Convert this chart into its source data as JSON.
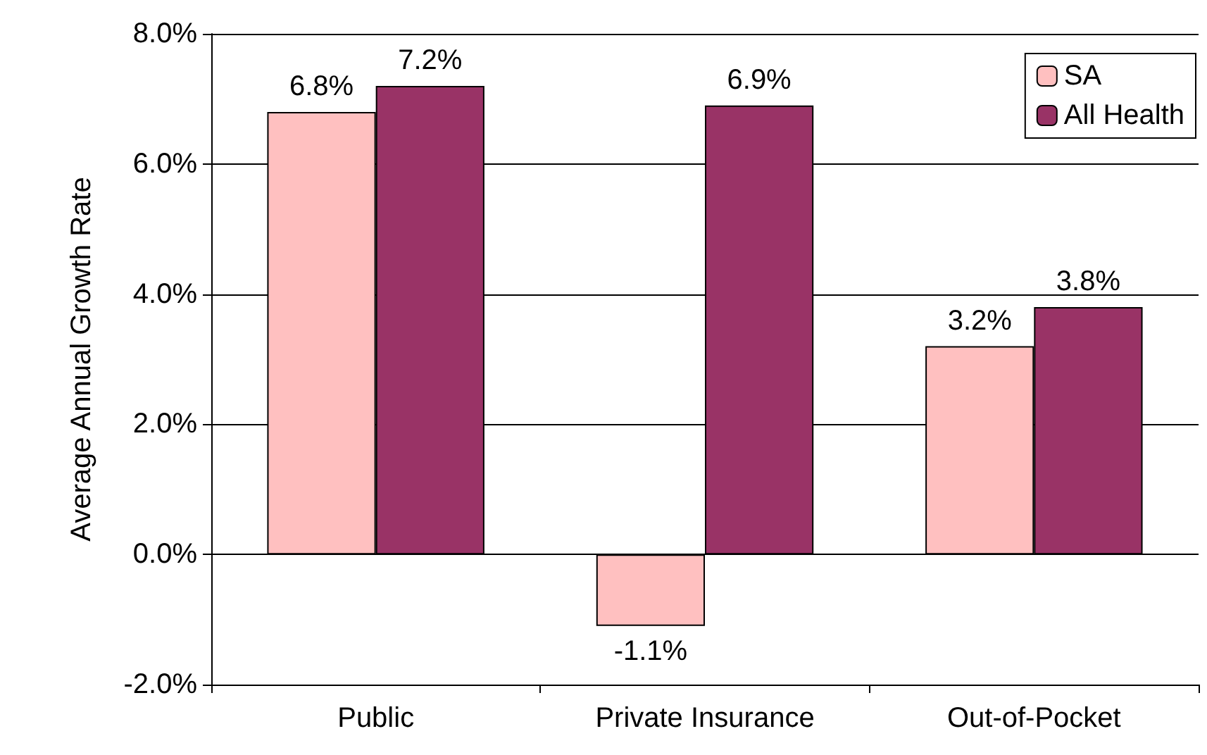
{
  "chart_data": {
    "type": "bar",
    "ylabel": "Average Annual Growth Rate",
    "categories": [
      "Public",
      "Private Insurance",
      "Out-of-Pocket"
    ],
    "series": [
      {
        "name": "SA",
        "color": "#ffc0c0",
        "values": [
          6.8,
          -1.1,
          3.2
        ],
        "value_labels": [
          "6.8%",
          "-1.1%",
          "3.2%"
        ]
      },
      {
        "name": "All Health",
        "color": "#993366",
        "values": [
          7.2,
          6.9,
          3.8
        ],
        "value_labels": [
          "7.2%",
          "6.9%",
          "3.8%"
        ]
      }
    ],
    "ylim": [
      -2,
      8
    ],
    "yticks": [
      {
        "value": -2,
        "label": "-2.0%"
      },
      {
        "value": 0,
        "label": "0.0%"
      },
      {
        "value": 2,
        "label": "2.0%"
      },
      {
        "value": 4,
        "label": "4.0%"
      },
      {
        "value": 6,
        "label": "6.0%"
      },
      {
        "value": 8,
        "label": "8.0%"
      }
    ],
    "grid": "y",
    "legend": "top right"
  }
}
